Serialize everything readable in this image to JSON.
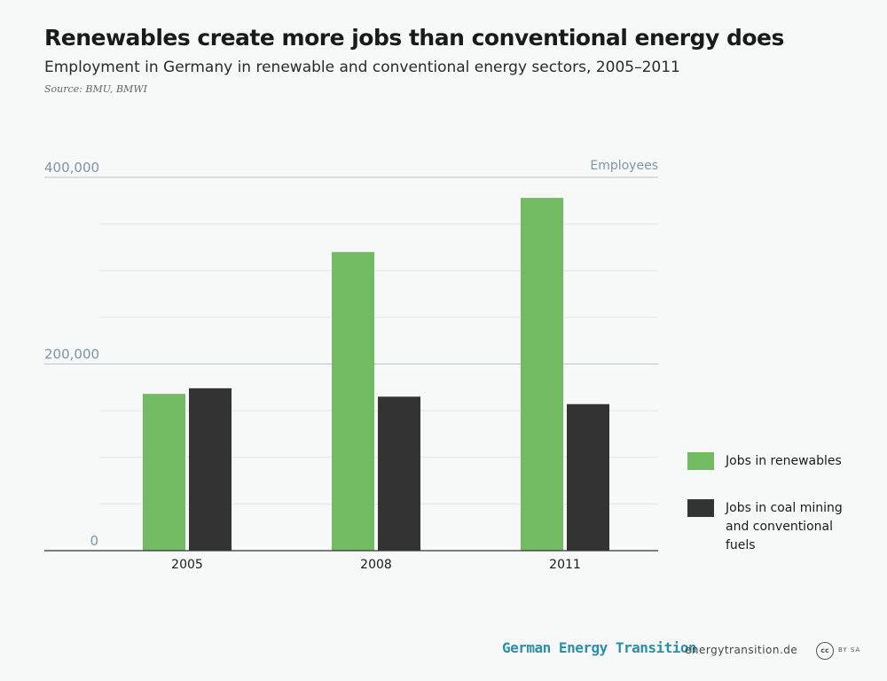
{
  "header": {
    "title": "Renewables create more jobs than conventional energy does",
    "subtitle": "Employment in Germany in renewable and conventional energy sectors, 2005–2011",
    "source": "Source: BMU, BMWI"
  },
  "chart_data": {
    "type": "bar",
    "categories": [
      "2005",
      "2008",
      "2011"
    ],
    "series": [
      {
        "name": "Jobs in renewables",
        "color": "#72bb63",
        "values": [
          168000,
          320000,
          378000
        ]
      },
      {
        "name": "Jobs in coal mining and conventional fuels",
        "color": "#333333",
        "values": [
          174000,
          165000,
          157000
        ]
      }
    ],
    "ylabel": "Employees",
    "ylim": [
      0,
      400000
    ],
    "yticks": [
      {
        "value": 0,
        "label": "0"
      },
      {
        "value": 200000,
        "label": "200,000"
      },
      {
        "value": 400000,
        "label": "400,000"
      }
    ],
    "grid": true,
    "legend": "right"
  },
  "legend": {
    "items": [
      {
        "label": "Jobs in renewables",
        "color": "#72bb63"
      },
      {
        "label": "Jobs in coal mining and conventional fuels",
        "color": "#333333"
      }
    ]
  },
  "footer": {
    "brand": "German Energy Transition",
    "site": "energytransition.de",
    "license_badge": "cc",
    "license_text": "BY SA"
  }
}
